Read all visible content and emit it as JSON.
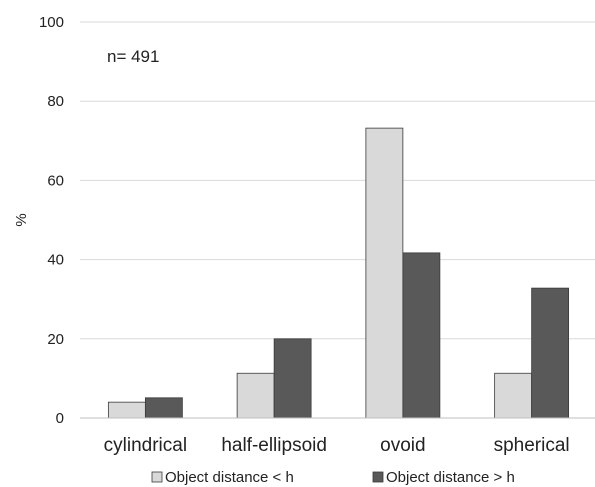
{
  "chart_data": {
    "type": "bar",
    "title": "",
    "xlabel": "",
    "ylabel": "%",
    "ylim": [
      0,
      100
    ],
    "yticks": [
      0,
      20,
      40,
      60,
      80,
      100
    ],
    "grid": true,
    "legend_position": "bottom",
    "annotation": "n= 491",
    "categories": [
      "cylindrical",
      "half-ellipsoid",
      "ovoid",
      "spherical"
    ],
    "series": [
      {
        "name": "Object distance < h",
        "values": [
          4,
          11.3,
          73.2,
          11.3
        ],
        "color": "#d9d9d9"
      },
      {
        "name": "Object distance > h",
        "values": [
          5.1,
          20,
          41.7,
          32.8
        ],
        "color": "#595959"
      }
    ]
  }
}
